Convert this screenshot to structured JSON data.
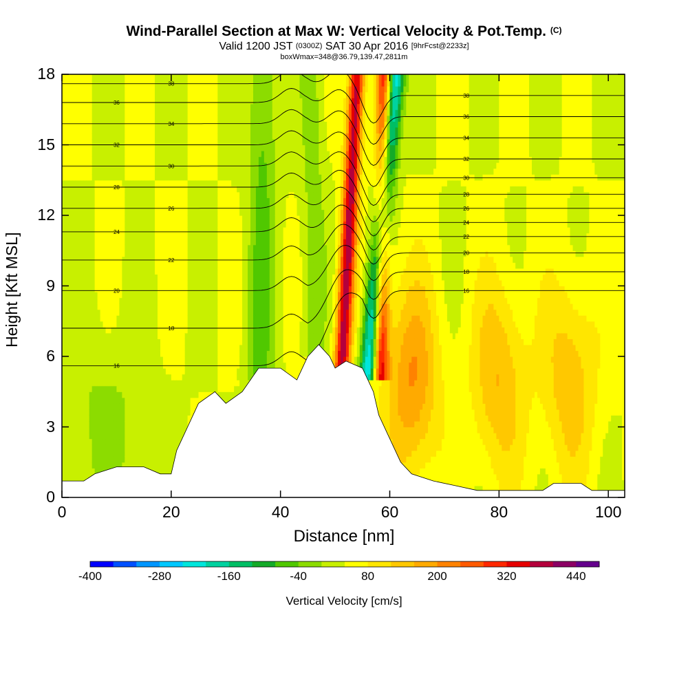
{
  "header": {
    "title": "Wind-Parallel Section at Max W: Vertical Velocity & Pot.Temp.",
    "title_mark": "(C)",
    "valid_prefix": "Valid 1200 JST",
    "valid_utc": "(0300Z)",
    "valid_date": "SAT 30 Apr 2016",
    "forecast_tag": "[9hrFcst@2233z]",
    "box_info": "boxWmax=348@36.79,139.47,2811m"
  },
  "chart_data": {
    "type": "heatmap",
    "xlabel": "Distance [nm]",
    "ylabel": "Height [Kft MSL]",
    "xlim": [
      0,
      103
    ],
    "ylim": [
      0,
      18
    ],
    "x_ticks": [
      "0",
      "20",
      "40",
      "60",
      "80",
      "100"
    ],
    "y_ticks": [
      "0",
      "3",
      "6",
      "9",
      "12",
      "15",
      "18"
    ],
    "colorbar": {
      "label": "Vertical Velocity [cm/s]",
      "range": [
        -400,
        480
      ],
      "ticks": [
        "-400",
        "-280",
        "-160",
        "-40",
        "80",
        "200",
        "320",
        "440"
      ],
      "colors": [
        "#0000ff",
        "#0050ff",
        "#0096ff",
        "#00c8ff",
        "#00e6dc",
        "#00d2a0",
        "#00be64",
        "#14aa28",
        "#50c800",
        "#8cdc00",
        "#c8f000",
        "#ffff00",
        "#ffe600",
        "#ffc800",
        "#ffaa00",
        "#ff8200",
        "#ff5a00",
        "#ff2800",
        "#e60000",
        "#b4003c",
        "#8c0064",
        "#64008c"
      ]
    },
    "terrain_kft": [
      [
        0,
        0.7
      ],
      [
        4,
        0.7
      ],
      [
        6,
        1.0
      ],
      [
        10,
        1.3
      ],
      [
        15,
        1.3
      ],
      [
        18,
        1.0
      ],
      [
        20,
        1.0
      ],
      [
        21,
        2.0
      ],
      [
        23,
        3.0
      ],
      [
        25,
        4.0
      ],
      [
        28,
        4.5
      ],
      [
        30,
        4.0
      ],
      [
        33,
        4.5
      ],
      [
        36,
        5.5
      ],
      [
        40,
        5.5
      ],
      [
        43,
        5.0
      ],
      [
        45,
        6.0
      ],
      [
        47,
        6.5
      ],
      [
        49,
        6.0
      ],
      [
        50,
        5.5
      ],
      [
        52,
        5.8
      ],
      [
        55,
        5.5
      ],
      [
        57,
        4.5
      ],
      [
        58,
        3.5
      ],
      [
        60,
        2.5
      ],
      [
        62,
        1.5
      ],
      [
        64,
        1.0
      ],
      [
        68,
        0.7
      ],
      [
        72,
        0.5
      ],
      [
        76,
        0.3
      ],
      [
        88,
        0.3
      ],
      [
        90,
        0.6
      ],
      [
        95,
        0.6
      ],
      [
        97,
        0.3
      ],
      [
        103,
        0.3
      ]
    ],
    "w_field_features": [
      {
        "kind": "updraft",
        "x_bottom": 50,
        "x_top": 54,
        "peak": 348
      },
      {
        "kind": "updraft",
        "x_bottom": 58,
        "x_top": 59,
        "peak": 300
      },
      {
        "kind": "downdraft",
        "x_bottom": 54,
        "x_top": 61,
        "peak": -300
      },
      {
        "kind": "updraft",
        "x_bottom": 64,
        "x_top": 64,
        "peak": 160
      },
      {
        "kind": "updraft",
        "x_bottom": 80,
        "x_top": 80,
        "peak": 120
      },
      {
        "kind": "updraft",
        "x_bottom": 93,
        "x_top": 93,
        "peak": 110
      }
    ],
    "theta_contours": [
      {
        "label": "16",
        "base": 5.6,
        "lee": 8.8
      },
      {
        "label": "18",
        "base": 7.2,
        "lee": 9.6
      },
      {
        "label": "20",
        "base": 8.8,
        "lee": 10.4
      },
      {
        "label": "22",
        "base": 10.1,
        "lee": 11.1
      },
      {
        "label": "24",
        "base": 11.3,
        "lee": 11.7
      },
      {
        "label": "26",
        "base": 12.3,
        "lee": 12.3
      },
      {
        "label": "28",
        "base": 13.2,
        "lee": 12.9
      },
      {
        "label": "30",
        "base": 14.1,
        "lee": 13.6
      },
      {
        "label": "32",
        "base": 15.0,
        "lee": 14.4
      },
      {
        "label": "34",
        "base": 15.9,
        "lee": 15.3
      },
      {
        "label": "36",
        "base": 16.8,
        "lee": 16.2
      },
      {
        "label": "38",
        "base": 17.6,
        "lee": 17.1
      }
    ]
  }
}
